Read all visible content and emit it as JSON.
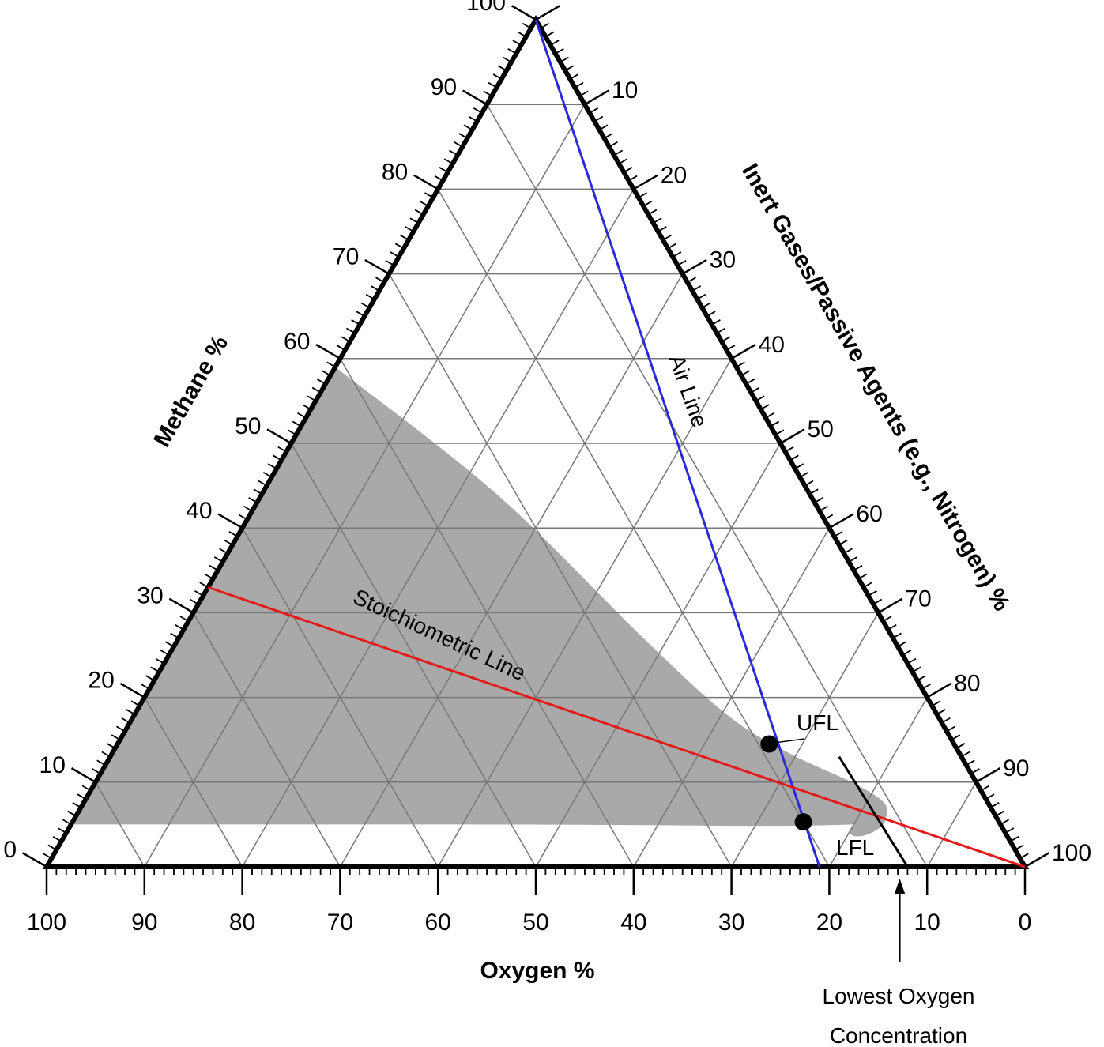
{
  "chart_data": {
    "type": "ternary",
    "axes": {
      "bottom": {
        "label": "Oxygen %",
        "ticks": [
          "100",
          "90",
          "80",
          "70",
          "60",
          "50",
          "40",
          "30",
          "20",
          "10",
          "0"
        ]
      },
      "left": {
        "label": "Methane %",
        "ticks": [
          "0",
          "10",
          "20",
          "30",
          "40",
          "50",
          "60",
          "70",
          "80",
          "90",
          "100"
        ]
      },
      "right": {
        "label": "Inert Gases/Passive Agents (e.g., Nitrogen) %",
        "ticks": [
          "10",
          "20",
          "30",
          "40",
          "50",
          "60",
          "70",
          "80",
          "90",
          "100"
        ]
      },
      "range": [
        0,
        100
      ],
      "major_step": 10,
      "minor_step": 1
    },
    "grid": true,
    "flammable_region": {
      "color": "#a9a9a9",
      "boundary": [
        {
          "oxygen": 41,
          "methane": 59,
          "inert": 0
        },
        {
          "oxygen": 32,
          "methane": 44,
          "inert": 24
        },
        {
          "oxygen": 25.5,
          "methane": 27,
          "inert": 47.5
        },
        {
          "oxygen": 21.5,
          "methane": 18,
          "inert": 60.5
        },
        {
          "oxygen": 17.5,
          "methane": 13.5,
          "inert": 69
        },
        {
          "oxygen": 12.5,
          "methane": 9.8,
          "inert": 77.7
        },
        {
          "oxygen": 10.6,
          "methane": 7.5,
          "inert": 81.9
        },
        {
          "oxygen": 11.5,
          "methane": 5.5,
          "inert": 83
        },
        {
          "oxygen": 15,
          "methane": 5,
          "inert": 80
        },
        {
          "oxygen": 30,
          "methane": 5,
          "inert": 65
        },
        {
          "oxygen": 60,
          "methane": 5,
          "inert": 35
        },
        {
          "oxygen": 95,
          "methane": 5,
          "inert": 0
        }
      ]
    },
    "lines": [
      {
        "name": "Air Line",
        "label": "Air Line",
        "color": "#2a2ad8",
        "points": [
          {
            "oxygen": 0,
            "methane": 100,
            "inert": 0
          },
          {
            "oxygen": 21,
            "methane": 0,
            "inert": 79
          }
        ]
      },
      {
        "name": "Stoichiometric Line",
        "label": "Stoichiometric Line",
        "color": "#e41a1a",
        "points": [
          {
            "oxygen": 67,
            "methane": 33,
            "inert": 0
          },
          {
            "oxygen": 0,
            "methane": 0,
            "inert": 100
          }
        ]
      },
      {
        "name": "Lowest Oxygen Concentration line",
        "color": "#000000",
        "points": [
          {
            "oxygen": 12,
            "methane": 0,
            "inert": 88
          },
          {
            "oxygen": 12.5,
            "methane": 13,
            "inert": 74.5
          }
        ]
      }
    ],
    "points": [
      {
        "label": "UFL",
        "oxygen": 18.9,
        "methane": 14.5,
        "inert": 66.6
      },
      {
        "label": "LFL",
        "oxygen": 20.0,
        "methane": 5.3,
        "inert": 74.7
      }
    ],
    "annotations": {
      "loc_label_line1": "Lowest Oxygen",
      "loc_label_line2": "Concentration",
      "loc_oxygen": 12.8
    }
  }
}
